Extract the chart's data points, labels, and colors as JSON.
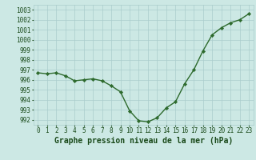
{
  "x": [
    0,
    1,
    2,
    3,
    4,
    5,
    6,
    7,
    8,
    9,
    10,
    11,
    12,
    13,
    14,
    15,
    16,
    17,
    18,
    19,
    20,
    21,
    22,
    23
  ],
  "y": [
    996.7,
    996.6,
    996.7,
    996.4,
    995.9,
    996.0,
    996.1,
    995.9,
    995.4,
    994.8,
    992.9,
    991.9,
    991.8,
    992.2,
    993.2,
    993.8,
    995.6,
    997.0,
    998.9,
    1000.5,
    1001.2,
    1001.7,
    1002.0,
    1002.6
  ],
  "line_color": "#2d6a2d",
  "marker": "D",
  "markersize": 2.2,
  "linewidth": 1.0,
  "bg_color": "#cce8e4",
  "grid_color": "#aacccc",
  "ylabel_ticks": [
    992,
    993,
    994,
    995,
    996,
    997,
    998,
    999,
    1000,
    1001,
    1002,
    1003
  ],
  "ylim": [
    991.5,
    1003.5
  ],
  "xlim": [
    -0.5,
    23.5
  ],
  "xlabel": "Graphe pression niveau de la mer (hPa)",
  "title_color": "#1a4a1a",
  "tick_label_fontsize": 5.5,
  "xlabel_fontsize": 7.0
}
